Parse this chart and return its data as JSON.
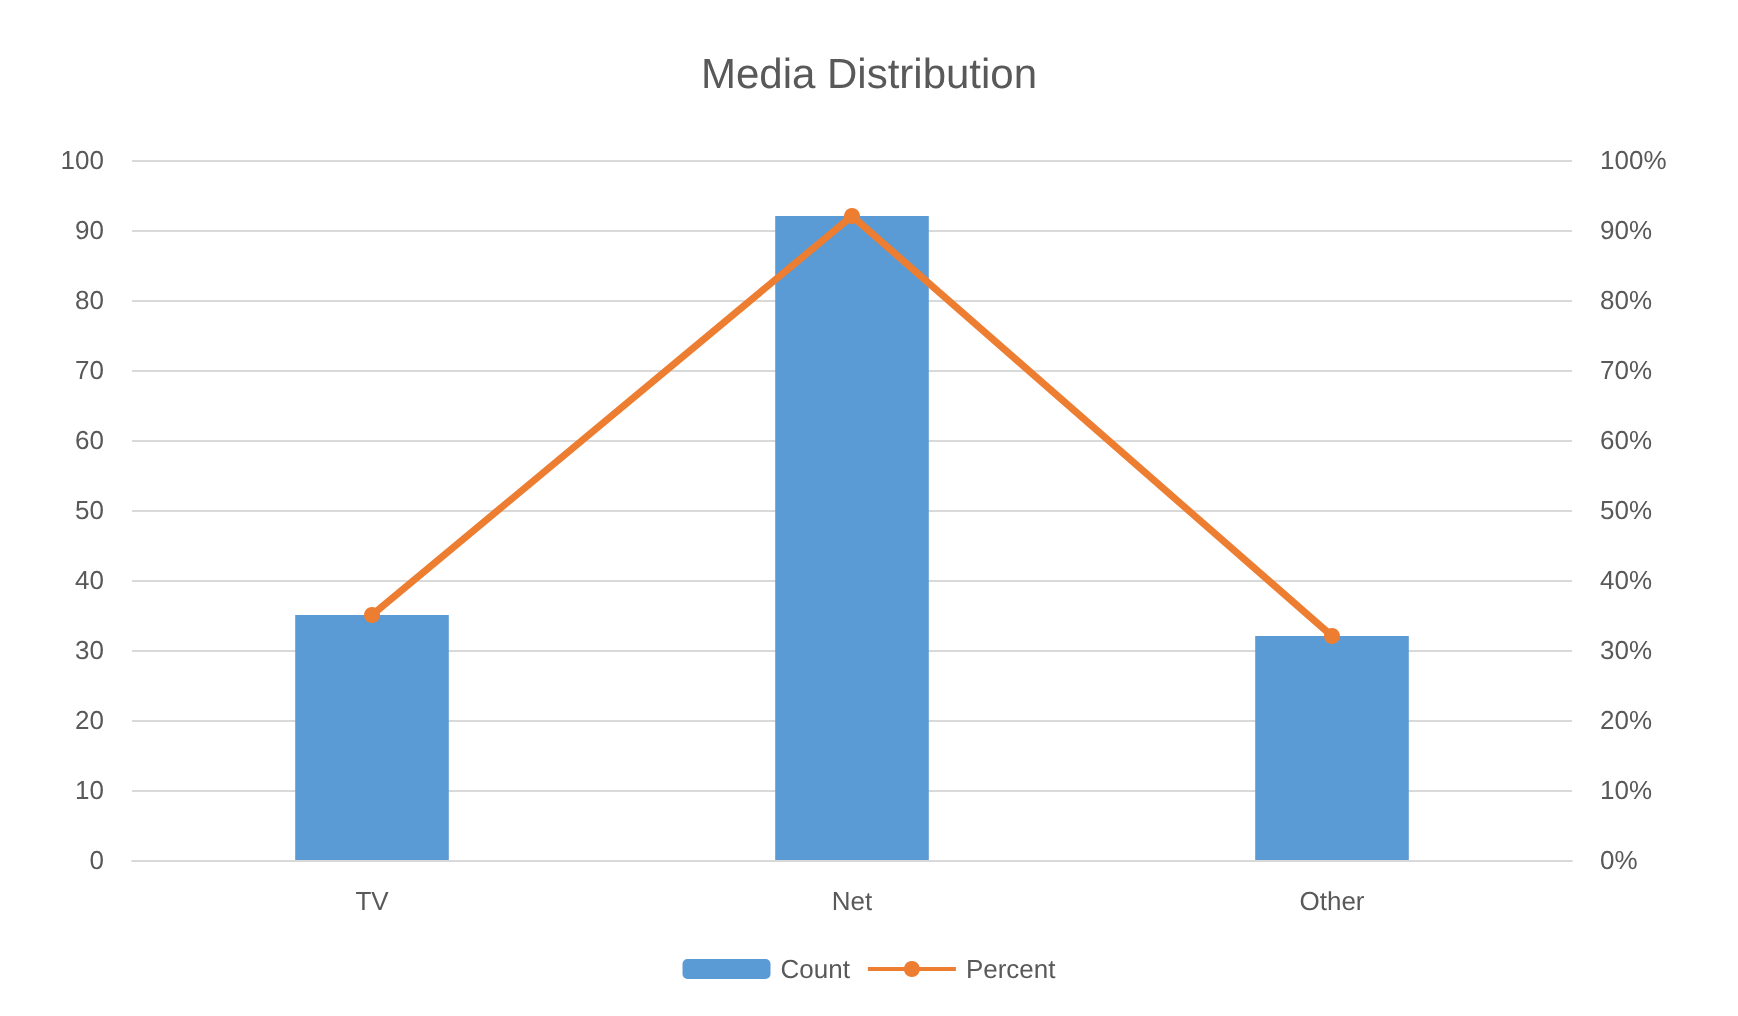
{
  "chart_data": {
    "type": "bar",
    "title": "Media Distribution",
    "categories": [
      "TV",
      "Net",
      "Other"
    ],
    "series": [
      {
        "name": "Count",
        "color": "#5b9bd5",
        "values": [
          35,
          92,
          32
        ]
      },
      {
        "name": "Percent",
        "type": "line",
        "axis": "y2",
        "color": "#ed7d31",
        "marker": "circle",
        "values": [
          35,
          92,
          32
        ]
      }
    ],
    "ylim": [
      0,
      100
    ],
    "yticks": [
      0,
      10,
      20,
      30,
      40,
      50,
      60,
      70,
      80,
      90,
      100
    ],
    "y2lim": [
      0,
      100
    ],
    "y2ticks": [
      {
        "value": 0,
        "label": "0%"
      },
      {
        "value": 10,
        "label": "10%"
      },
      {
        "value": 20,
        "label": "20%"
      },
      {
        "value": 30,
        "label": "30%"
      },
      {
        "value": 40,
        "label": "40%"
      },
      {
        "value": 50,
        "label": "50%"
      },
      {
        "value": 60,
        "label": "60%"
      },
      {
        "value": 70,
        "label": "70%"
      },
      {
        "value": 80,
        "label": "80%"
      },
      {
        "value": 90,
        "label": "90%"
      },
      {
        "value": 100,
        "label": "100%"
      }
    ],
    "grid": "y",
    "legend": "bottom"
  }
}
